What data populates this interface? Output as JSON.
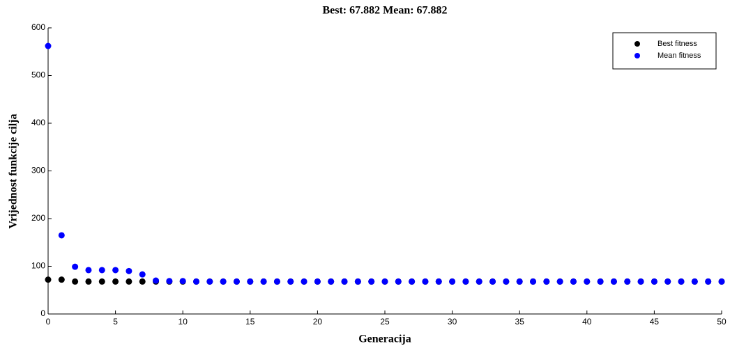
{
  "chart_data": {
    "type": "scatter",
    "title": "Best: 67.882 Mean: 67.882",
    "x_label": "Generacija",
    "y_label": "Vrijednost funkcije cilja",
    "x": [
      0,
      1,
      2,
      3,
      4,
      5,
      6,
      7,
      8,
      9,
      10,
      11,
      12,
      13,
      14,
      15,
      16,
      17,
      18,
      19,
      20,
      21,
      22,
      23,
      24,
      25,
      26,
      27,
      28,
      29,
      30,
      31,
      32,
      33,
      34,
      35,
      36,
      37,
      38,
      39,
      40,
      41,
      42,
      43,
      44,
      45,
      46,
      47,
      48,
      49,
      50
    ],
    "series": [
      {
        "name": "Best fitness",
        "color": "#000000",
        "values": [
          72,
          72,
          68,
          68,
          68,
          68,
          68,
          68,
          68,
          68,
          68,
          68,
          68,
          68,
          68,
          68,
          68,
          68,
          68,
          68,
          68,
          68,
          68,
          68,
          68,
          68,
          68,
          68,
          68,
          68,
          68,
          68,
          68,
          68,
          68,
          68,
          68,
          68,
          68,
          68,
          68,
          68,
          68,
          68,
          68,
          68,
          68,
          68,
          68,
          68,
          68
        ]
      },
      {
        "name": "Mean fitness",
        "color": "#0000ff",
        "values": [
          562,
          165,
          99,
          92,
          92,
          92,
          90,
          83,
          70,
          69,
          69,
          68,
          68,
          68,
          68,
          68,
          68,
          68,
          68,
          68,
          68,
          68,
          68,
          68,
          68,
          68,
          68,
          68,
          68,
          68,
          68,
          68,
          68,
          68,
          68,
          68,
          68,
          68,
          68,
          68,
          68,
          68,
          68,
          68,
          68,
          68,
          68,
          68,
          68,
          68,
          68
        ]
      }
    ],
    "xlim": [
      0,
      50
    ],
    "ylim": [
      0,
      600
    ],
    "xticks": [
      0,
      5,
      10,
      15,
      20,
      25,
      30,
      35,
      40,
      45,
      50
    ],
    "yticks": [
      0,
      100,
      200,
      300,
      400,
      500,
      600
    ],
    "legend": "upper right"
  }
}
